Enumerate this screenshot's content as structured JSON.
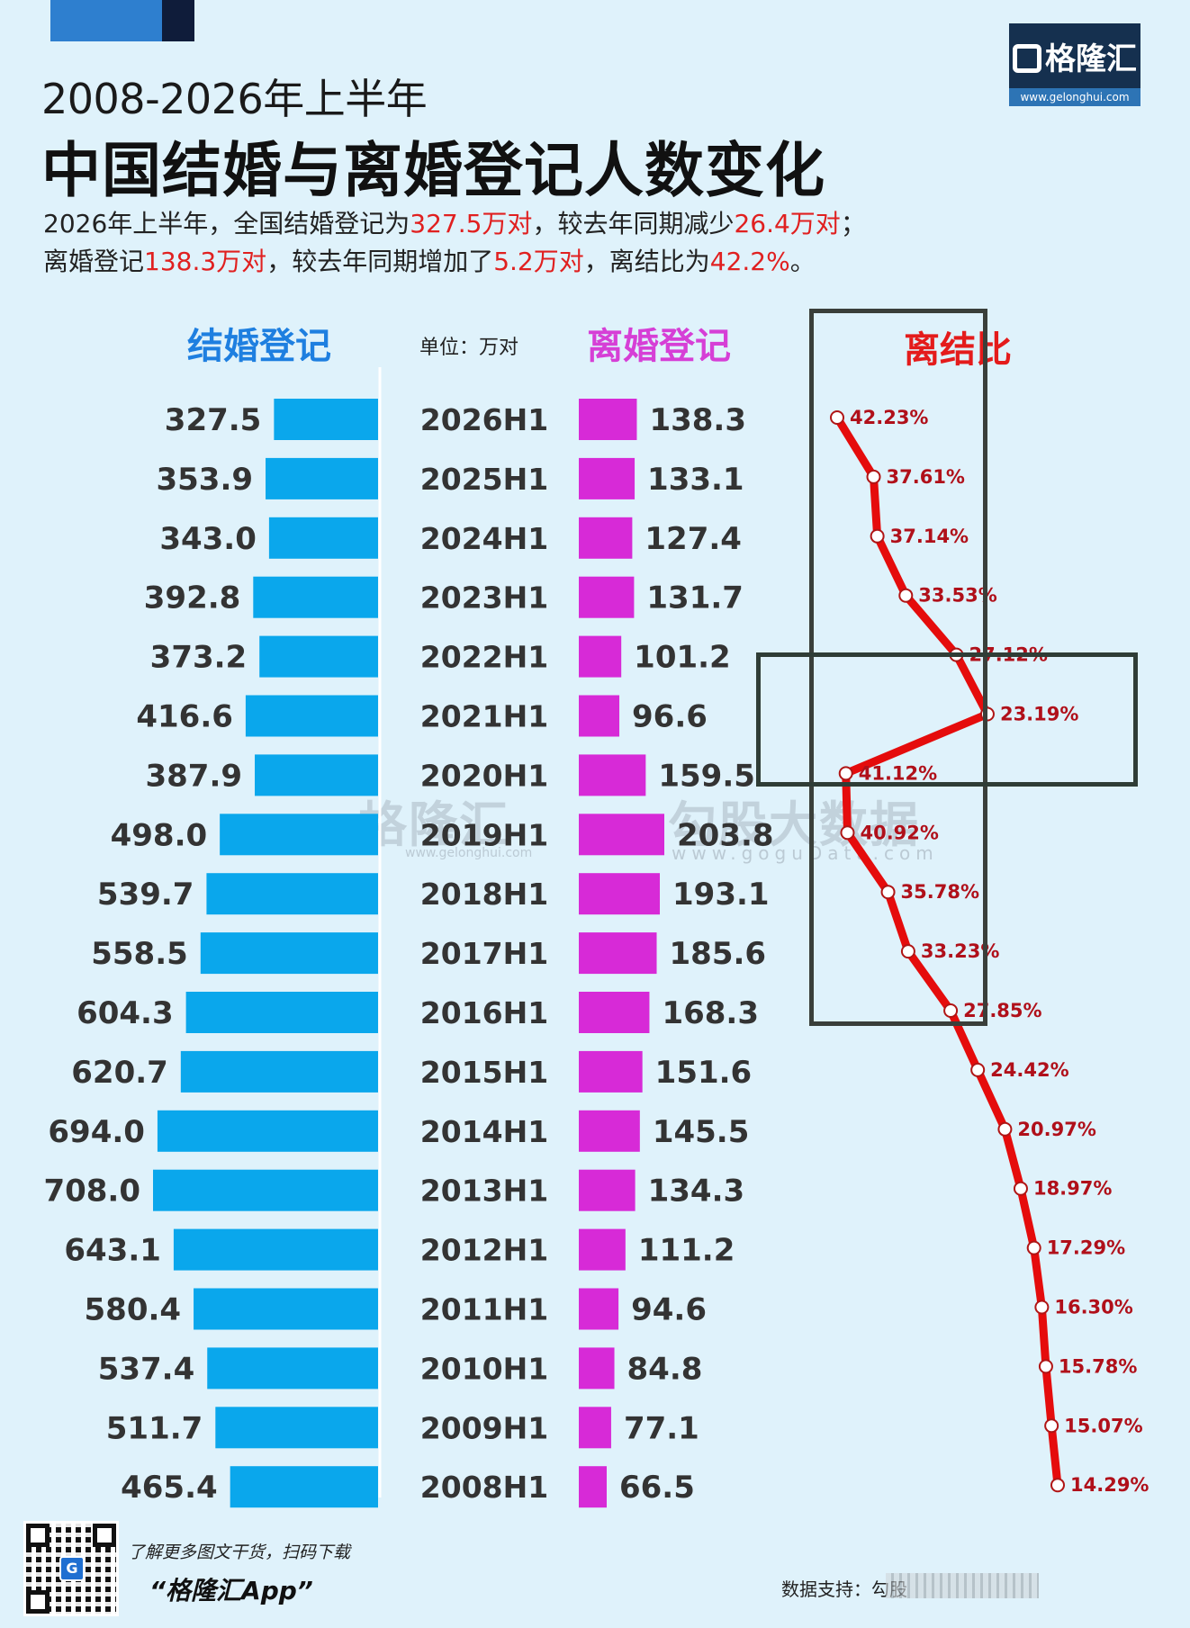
{
  "header": {
    "subtitle": "2008-2026年上半年",
    "title": "中国结婚与离婚登记人数变化",
    "summary": {
      "line1": [
        {
          "text": "2026年上半年，全国结婚登记为",
          "hl": false
        },
        {
          "text": "327.5万对",
          "hl": true
        },
        {
          "text": "，较去年同期减少",
          "hl": false
        },
        {
          "text": "26.4万对",
          "hl": true
        },
        {
          "text": "；",
          "hl": false
        }
      ],
      "line2": [
        {
          "text": "离婚登记",
          "hl": false
        },
        {
          "text": "138.3万对",
          "hl": true
        },
        {
          "text": "，较去年同期增加了",
          "hl": false
        },
        {
          "text": "5.2万对",
          "hl": true
        },
        {
          "text": "，离结比为",
          "hl": false
        },
        {
          "text": "42.2%",
          "hl": true
        },
        {
          "text": "。",
          "hl": false
        }
      ]
    }
  },
  "logo": {
    "name": "格隆汇",
    "url": "www.gelonghui.com"
  },
  "watermark": {
    "left": "格隆汇",
    "left_url": "www.gelonghui.com",
    "right": "勾股大数据",
    "right_url": "www.goguData.com"
  },
  "footer": {
    "promo": "了解更多图文干货，扫码下载",
    "app_name": "“格隆汇App”",
    "source": "数据支持：勾股"
  },
  "colors": {
    "marriage": "#0aa7ec",
    "divorce": "#d72ad7",
    "ratio": "#e50c0c",
    "marriage_header": "#1e7fe0",
    "divorce_header": "#d63fd6",
    "ratio_header": "#e41b1b"
  },
  "chart_data": {
    "type": "bar",
    "headers": {
      "marriage": "结婚登记",
      "unit": "单位：万对",
      "divorce": "离婚登记",
      "ratio": "离结比"
    },
    "categories": [
      "2026H1",
      "2025H1",
      "2024H1",
      "2023H1",
      "2022H1",
      "2021H1",
      "2020H1",
      "2019H1",
      "2018H1",
      "2017H1",
      "2016H1",
      "2015H1",
      "2014H1",
      "2013H1",
      "2012H1",
      "2011H1",
      "2010H1",
      "2009H1",
      "2008H1"
    ],
    "series": [
      {
        "name": "结婚登记",
        "values": [
          327.5,
          353.9,
          343.0,
          392.8,
          373.2,
          416.6,
          387.9,
          498.0,
          539.7,
          558.5,
          604.3,
          620.7,
          694.0,
          708.0,
          643.1,
          580.4,
          537.4,
          511.7,
          465.4
        ],
        "labels": [
          "327.5",
          "353.9",
          "343.0",
          "392.8",
          "373.2",
          "416.6",
          "387.9",
          "498.0",
          "539.7",
          "558.5",
          "604.3",
          "620.7",
          "694.0",
          "708.0",
          "643.1",
          "580.4",
          "537.4",
          "511.7",
          "465.4"
        ]
      },
      {
        "name": "离婚登记",
        "values": [
          138.3,
          133.1,
          127.4,
          131.7,
          101.2,
          96.6,
          159.5,
          203.8,
          193.1,
          185.6,
          168.3,
          151.6,
          145.5,
          134.3,
          111.2,
          94.6,
          84.8,
          77.1,
          66.5
        ],
        "labels": [
          "138.3",
          "133.1",
          "127.4",
          "131.7",
          "101.2",
          "96.6",
          "159.5",
          "203.8",
          "193.1",
          "185.6",
          "168.3",
          "151.6",
          "145.5",
          "134.3",
          "111.2",
          "94.6",
          "84.8",
          "77.1",
          "66.5"
        ]
      },
      {
        "name": "离结比",
        "values": [
          42.23,
          37.61,
          37.14,
          33.53,
          27.12,
          23.19,
          41.12,
          40.92,
          35.78,
          33.23,
          27.85,
          24.42,
          20.97,
          18.97,
          17.29,
          16.3,
          15.78,
          15.07,
          14.29
        ],
        "labels": [
          "42.23%",
          "37.61%",
          "37.14%",
          "33.53%",
          "27.12%",
          "23.19%",
          "41.12%",
          "40.92%",
          "35.78%",
          "33.23%",
          "27.85%",
          "24.42%",
          "20.97%",
          "18.97%",
          "17.29%",
          "16.30%",
          "15.78%",
          "15.07%",
          "14.29%"
        ]
      }
    ]
  }
}
